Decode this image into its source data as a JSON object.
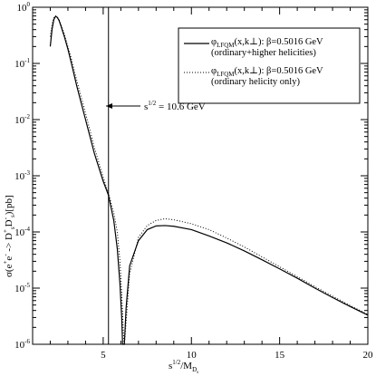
{
  "chart_data": {
    "type": "line",
    "xlim": [
      1,
      20
    ],
    "ylim": [
      1e-06,
      1
    ],
    "yscale": "log",
    "grid": false,
    "legend_position": "top-right",
    "x_ticks": [
      "5",
      "10",
      "15",
      "20"
    ],
    "y_tick_mantissa": "10",
    "y_tick_exponents": [
      "-6",
      "-5",
      "-4",
      "-3",
      "-2",
      "-1",
      "0"
    ],
    "xlabel": {
      "main": "s",
      "sup": "1/2",
      "mid": "/M",
      "sub": "D",
      "subsub": "s"
    },
    "ylabel": {
      "a": "σ(e",
      "b": "+",
      "c": "e",
      "d": "-",
      "e": " -> D",
      "f": "+",
      "g": "D",
      "h": "-",
      "i": ")[pb]",
      "sub": "s"
    },
    "vline": {
      "x": 5.3,
      "label_main": "s",
      "label_sup": "1/2",
      "label_rest": " = 10.6 GeV"
    },
    "series": [
      {
        "style": "solid",
        "legend": {
          "phi": "φ",
          "sub": "LFQM",
          "rest": "(x,k⊥): β=0.5016 GeV",
          "line2": "(ordinary+higher helicities)"
        },
        "points": [
          [
            2.0,
            0.2
          ],
          [
            2.1,
            0.4
          ],
          [
            2.2,
            0.6
          ],
          [
            2.3,
            0.69
          ],
          [
            2.4,
            0.66
          ],
          [
            2.5,
            0.58
          ],
          [
            2.6,
            0.47
          ],
          [
            2.8,
            0.3
          ],
          [
            3.0,
            0.18
          ],
          [
            3.2,
            0.1
          ],
          [
            3.5,
            0.04
          ],
          [
            4.0,
            0.01
          ],
          [
            4.5,
            0.0025
          ],
          [
            5.0,
            0.0008
          ],
          [
            5.3,
            0.00045
          ],
          [
            5.6,
            0.00016
          ],
          [
            5.8,
            5e-05
          ],
          [
            5.95,
            1.2e-05
          ],
          [
            6.05,
            3e-06
          ],
          [
            6.1,
            1e-06
          ],
          [
            6.2,
            1e-06
          ],
          [
            6.3,
            4.5e-06
          ],
          [
            6.5,
            2.5e-05
          ],
          [
            7.0,
            7e-05
          ],
          [
            7.5,
            0.00011
          ],
          [
            8.0,
            0.000128
          ],
          [
            8.5,
            0.00013
          ],
          [
            9.0,
            0.000126
          ],
          [
            10.0,
            0.00011
          ],
          [
            11.0,
            8.5e-05
          ],
          [
            12.0,
            6.4e-05
          ],
          [
            13.0,
            4.6e-05
          ],
          [
            14.0,
            3.2e-05
          ],
          [
            15.0,
            2.2e-05
          ],
          [
            16.0,
            1.5e-05
          ],
          [
            17.0,
            1e-05
          ],
          [
            18.0,
            6.8e-06
          ],
          [
            19.0,
            4.7e-06
          ],
          [
            20.0,
            3.3e-06
          ]
        ]
      },
      {
        "style": "dotted",
        "legend": {
          "phi": "φ",
          "sub": "LFQM",
          "rest": "(x,k⊥): β=0.5016 GeV",
          "line2": "(ordinary helicity only)"
        },
        "points": [
          [
            2.0,
            0.3
          ],
          [
            2.1,
            0.5
          ],
          [
            2.2,
            0.65
          ],
          [
            2.3,
            0.7
          ],
          [
            2.4,
            0.66
          ],
          [
            2.5,
            0.6
          ],
          [
            2.6,
            0.5
          ],
          [
            2.8,
            0.33
          ],
          [
            3.0,
            0.2
          ],
          [
            3.2,
            0.12
          ],
          [
            3.5,
            0.05
          ],
          [
            4.0,
            0.013
          ],
          [
            4.5,
            0.0032
          ],
          [
            5.0,
            0.00095
          ],
          [
            5.3,
            0.00048
          ],
          [
            5.6,
            0.00022
          ],
          [
            5.8,
            0.0001
          ],
          [
            5.95,
            3e-05
          ],
          [
            6.05,
            8e-06
          ],
          [
            6.15,
            1.5e-06
          ],
          [
            6.2,
            1e-06
          ],
          [
            6.3,
            2.5e-06
          ],
          [
            6.5,
            1.8e-05
          ],
          [
            7.0,
            8e-05
          ],
          [
            7.5,
            0.00013
          ],
          [
            8.0,
            0.00016
          ],
          [
            8.5,
            0.000172
          ],
          [
            9.0,
            0.000165
          ],
          [
            10.0,
            0.00014
          ],
          [
            11.0,
            0.00011
          ],
          [
            12.0,
            7.8e-05
          ],
          [
            13.0,
            5.4e-05
          ],
          [
            14.0,
            3.6e-05
          ],
          [
            15.0,
            2.4e-05
          ],
          [
            16.0,
            1.6e-05
          ],
          [
            17.0,
            1.06e-05
          ],
          [
            18.0,
            7.2e-06
          ],
          [
            19.0,
            4.9e-06
          ],
          [
            20.0,
            3.4e-06
          ]
        ]
      }
    ]
  }
}
